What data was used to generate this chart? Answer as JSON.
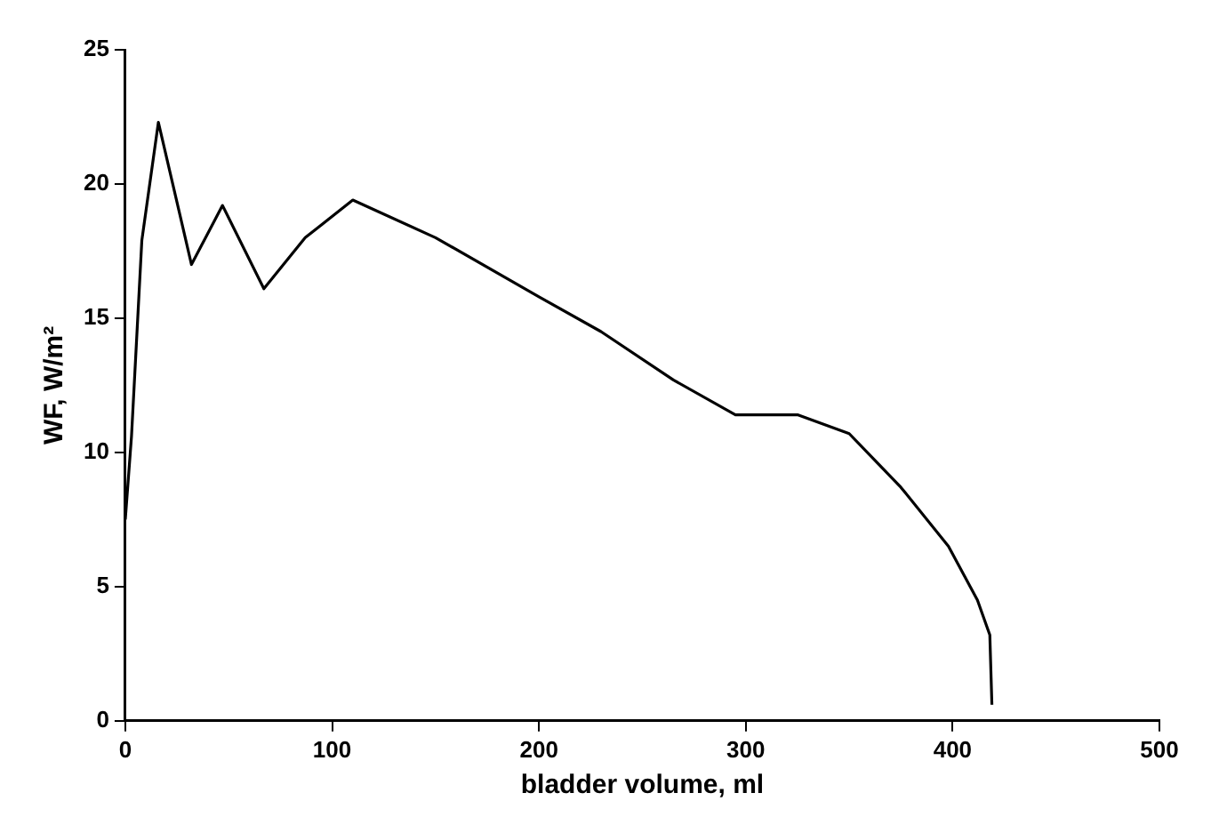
{
  "chart_data": {
    "type": "line",
    "xlabel": "bladder volume, ml",
    "ylabel": "WF, W/m²",
    "x": [
      0,
      3,
      8,
      16,
      32,
      47,
      67,
      87,
      110,
      150,
      200,
      230,
      265,
      295,
      325,
      350,
      375,
      398,
      412,
      418,
      419
    ],
    "series": [
      {
        "color": "#000000",
        "values": [
          7.5,
          10.6,
          17.9,
          22.3,
          17.0,
          19.2,
          16.1,
          18.0,
          19.4,
          18.0,
          15.8,
          14.5,
          12.7,
          11.4,
          11.4,
          10.7,
          8.7,
          6.5,
          4.5,
          3.2,
          0.6
        ]
      }
    ],
    "xlim": [
      0,
      500
    ],
    "xticks": [
      0,
      100,
      200,
      300,
      400,
      500
    ],
    "ylim": [
      0,
      25
    ],
    "yticks": [
      0,
      5,
      10,
      15,
      20,
      25
    ],
    "grid": false,
    "legend": false,
    "marker": "none",
    "line_style": "solid"
  }
}
